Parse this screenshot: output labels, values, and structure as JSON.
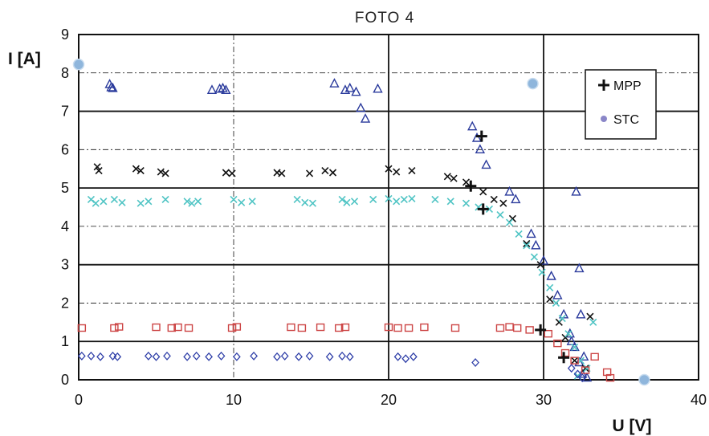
{
  "chart_data": {
    "type": "scatter",
    "title": "FOTO 4",
    "xlabel": "U [V]",
    "ylabel": "I [A]",
    "xlim": [
      0,
      40
    ],
    "ylim": [
      0,
      9
    ],
    "x_ticks": [
      "0",
      "10",
      "20",
      "30",
      "40"
    ],
    "y_ticks": [
      "0",
      "1",
      "2",
      "3",
      "4",
      "5",
      "6",
      "7",
      "8",
      "9"
    ],
    "grid": true,
    "legend_position": "top-right",
    "legend": [
      "MPP",
      "STC"
    ],
    "series": [
      {
        "marker": "triangle",
        "color": "#2a3a9c",
        "points": [
          [
            2,
            7.7
          ],
          [
            2.1,
            7.62
          ],
          [
            2.2,
            7.6
          ],
          [
            8.6,
            7.55
          ],
          [
            9.1,
            7.58
          ],
          [
            9.3,
            7.6
          ],
          [
            9.5,
            7.55
          ],
          [
            16.5,
            7.72
          ],
          [
            17.2,
            7.55
          ],
          [
            17.5,
            7.6
          ],
          [
            17.9,
            7.5
          ],
          [
            18.2,
            7.08
          ],
          [
            18.5,
            6.8
          ],
          [
            19.3,
            7.58
          ],
          [
            25.4,
            6.6
          ],
          [
            25.7,
            6.3
          ],
          [
            25.9,
            6.0
          ],
          [
            26.3,
            5.6
          ],
          [
            27.8,
            4.9
          ],
          [
            28.2,
            4.7
          ],
          [
            29.2,
            3.8
          ],
          [
            29.5,
            3.5
          ],
          [
            30,
            3.1
          ],
          [
            30.5,
            2.7
          ],
          [
            30.9,
            2.2
          ],
          [
            31.3,
            1.7
          ],
          [
            31.7,
            1.2
          ],
          [
            32.0,
            0.85
          ],
          [
            32.3,
            0.45
          ],
          [
            32.5,
            0.15
          ],
          [
            32.8,
            0.05
          ],
          [
            32.4,
            1.7
          ],
          [
            32.1,
            4.9
          ],
          [
            32.3,
            2.9
          ],
          [
            31.8,
            1.0
          ],
          [
            32.6,
            0.6
          ]
        ]
      },
      {
        "marker": "x",
        "color": "#111111",
        "points": [
          [
            1.2,
            5.55
          ],
          [
            1.3,
            5.45
          ],
          [
            3.7,
            5.5
          ],
          [
            4.0,
            5.45
          ],
          [
            5.3,
            5.42
          ],
          [
            5.6,
            5.38
          ],
          [
            9.5,
            5.4
          ],
          [
            9.9,
            5.38
          ],
          [
            12.8,
            5.4
          ],
          [
            13.1,
            5.38
          ],
          [
            14.9,
            5.38
          ],
          [
            15.9,
            5.45
          ],
          [
            16.4,
            5.4
          ],
          [
            20.0,
            5.5
          ],
          [
            20.5,
            5.42
          ],
          [
            21.5,
            5.45
          ],
          [
            23.8,
            5.3
          ],
          [
            24.2,
            5.25
          ],
          [
            25.0,
            5.15
          ],
          [
            26.1,
            4.9
          ],
          [
            26.8,
            4.7
          ],
          [
            27.4,
            4.6
          ],
          [
            28.0,
            4.2
          ],
          [
            28.9,
            3.55
          ],
          [
            29.8,
            3.0
          ],
          [
            30.4,
            2.1
          ],
          [
            31.0,
            1.5
          ],
          [
            31.4,
            1.1
          ],
          [
            32.0,
            0.5
          ],
          [
            32.7,
            0.3
          ],
          [
            33.0,
            1.65
          ]
        ]
      },
      {
        "marker": "x",
        "color": "#4fc4c4",
        "points": [
          [
            0.8,
            4.7
          ],
          [
            1.1,
            4.6
          ],
          [
            1.6,
            4.65
          ],
          [
            2.3,
            4.7
          ],
          [
            2.8,
            4.62
          ],
          [
            4.0,
            4.6
          ],
          [
            4.5,
            4.65
          ],
          [
            5.6,
            4.7
          ],
          [
            7.0,
            4.65
          ],
          [
            7.3,
            4.6
          ],
          [
            7.7,
            4.65
          ],
          [
            10.0,
            4.7
          ],
          [
            10.5,
            4.62
          ],
          [
            11.2,
            4.65
          ],
          [
            14.1,
            4.7
          ],
          [
            14.6,
            4.62
          ],
          [
            15.1,
            4.6
          ],
          [
            17.0,
            4.7
          ],
          [
            17.3,
            4.62
          ],
          [
            17.8,
            4.65
          ],
          [
            19.0,
            4.7
          ],
          [
            20.0,
            4.72
          ],
          [
            20.5,
            4.65
          ],
          [
            21.0,
            4.7
          ],
          [
            21.5,
            4.72
          ],
          [
            23.0,
            4.7
          ],
          [
            24.0,
            4.65
          ],
          [
            25.0,
            4.6
          ],
          [
            25.8,
            4.5
          ],
          [
            26.5,
            4.45
          ],
          [
            27.2,
            4.3
          ],
          [
            27.8,
            4.1
          ],
          [
            28.4,
            3.8
          ],
          [
            28.9,
            3.5
          ],
          [
            29.4,
            3.2
          ],
          [
            29.9,
            2.8
          ],
          [
            30.4,
            2.4
          ],
          [
            30.8,
            2.0
          ],
          [
            31.2,
            1.6
          ],
          [
            31.6,
            1.2
          ],
          [
            32.0,
            0.85
          ],
          [
            32.4,
            0.5
          ],
          [
            32.8,
            0.3
          ],
          [
            33.2,
            1.5
          ],
          [
            32.2,
            0.1
          ]
        ]
      },
      {
        "marker": "square",
        "color": "#cc4444",
        "points": [
          [
            0.2,
            1.35
          ],
          [
            2.3,
            1.35
          ],
          [
            2.6,
            1.38
          ],
          [
            5.0,
            1.37
          ],
          [
            6.0,
            1.35
          ],
          [
            6.4,
            1.37
          ],
          [
            7.1,
            1.35
          ],
          [
            9.9,
            1.35
          ],
          [
            10.2,
            1.38
          ],
          [
            13.7,
            1.37
          ],
          [
            14.4,
            1.35
          ],
          [
            15.6,
            1.37
          ],
          [
            16.8,
            1.35
          ],
          [
            17.2,
            1.37
          ],
          [
            20.0,
            1.37
          ],
          [
            20.6,
            1.35
          ],
          [
            21.3,
            1.35
          ],
          [
            22.3,
            1.37
          ],
          [
            24.3,
            1.35
          ],
          [
            27.2,
            1.35
          ],
          [
            27.8,
            1.38
          ],
          [
            28.3,
            1.35
          ],
          [
            29.1,
            1.3
          ],
          [
            30.3,
            1.2
          ],
          [
            30.9,
            0.95
          ],
          [
            31.4,
            0.7
          ],
          [
            32.0,
            0.5
          ],
          [
            32.7,
            0.25
          ],
          [
            33.3,
            0.6
          ],
          [
            34.1,
            0.2
          ],
          [
            34.3,
            0.05
          ]
        ]
      },
      {
        "marker": "diamond",
        "color": "#2f3fa8",
        "points": [
          [
            0.2,
            0.62
          ],
          [
            0.8,
            0.62
          ],
          [
            1.4,
            0.6
          ],
          [
            2.2,
            0.62
          ],
          [
            2.5,
            0.6
          ],
          [
            4.5,
            0.62
          ],
          [
            5.0,
            0.6
          ],
          [
            5.7,
            0.62
          ],
          [
            7.0,
            0.6
          ],
          [
            7.6,
            0.62
          ],
          [
            8.4,
            0.6
          ],
          [
            9.2,
            0.62
          ],
          [
            10.2,
            0.6
          ],
          [
            11.3,
            0.62
          ],
          [
            12.8,
            0.6
          ],
          [
            13.3,
            0.62
          ],
          [
            14.2,
            0.6
          ],
          [
            14.9,
            0.62
          ],
          [
            16.2,
            0.6
          ],
          [
            17.0,
            0.62
          ],
          [
            17.5,
            0.6
          ],
          [
            20.6,
            0.6
          ],
          [
            21.1,
            0.55
          ],
          [
            21.6,
            0.6
          ],
          [
            25.6,
            0.45
          ],
          [
            31.8,
            0.3
          ],
          [
            32.2,
            0.15
          ],
          [
            32.5,
            0.05
          ]
        ]
      },
      {
        "name": "MPP",
        "marker": "plus",
        "color": "#111111",
        "points": [
          [
            26.0,
            6.35
          ],
          [
            25.3,
            5.05
          ],
          [
            26.1,
            4.45
          ],
          [
            29.8,
            1.3
          ],
          [
            31.3,
            0.58
          ]
        ]
      },
      {
        "name": "STC",
        "marker": "circle",
        "color": "#8fb6dc",
        "points": [
          [
            0,
            8.22
          ],
          [
            29.3,
            7.72
          ],
          [
            36.5,
            0
          ]
        ]
      }
    ]
  }
}
